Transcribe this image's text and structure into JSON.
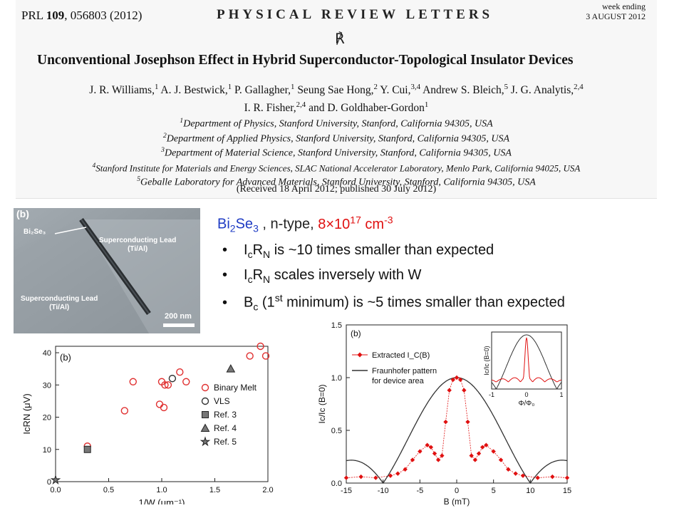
{
  "paper": {
    "citation_prefix": "PRL ",
    "volume": "109",
    "citation_suffix": ", 056803 (2012)",
    "journal": "PHYSICAL REVIEW LETTERS",
    "week_ending": "week ending",
    "date": "3 AUGUST 2012",
    "title": "Unconventional Josephson Effect in Hybrid Superconductor-Topological Insulator Devices",
    "authors": [
      {
        "name": "J. R. Williams,",
        "aff": "1"
      },
      {
        "name": "A. J. Bestwick,",
        "aff": "1"
      },
      {
        "name": "P. Gallagher,",
        "aff": "1"
      },
      {
        "name": "Seung Sae Hong,",
        "aff": "2"
      },
      {
        "name": "Y. Cui,",
        "aff": "3,4"
      },
      {
        "name": "Andrew S. Bleich,",
        "aff": "5"
      },
      {
        "name": "J. G. Analytis,",
        "aff": "2,4"
      },
      {
        "name": "I. R. Fisher,",
        "aff": "2,4"
      },
      {
        "name": "and D. Goldhaber-Gordon",
        "aff": "1"
      }
    ],
    "affiliations": [
      {
        "num": "1",
        "text": "Department of Physics, Stanford University, Stanford, California 94305, USA"
      },
      {
        "num": "2",
        "text": "Department of Applied Physics, Stanford University, Stanford, California 94305, USA"
      },
      {
        "num": "3",
        "text": "Department of Material Science, Stanford University, Stanford, California 94305, USA"
      },
      {
        "num": "4",
        "text": "Stanford Institute for Materials and Energy Sciences, SLAC National Accelerator Laboratory, Menlo Park, California 94025, USA"
      },
      {
        "num": "5",
        "text": "Geballe Laboratory for Advanced Materials, Stanford University, Stanford, California 94305, USA"
      }
    ],
    "received": "(Received 18 April 2012; published 30 July 2012)"
  },
  "sem_image": {
    "panel_label": "(b)",
    "material_label": "Bi₂Se₃",
    "lead_top": "Superconducting Lead\n(Ti/Al)",
    "lead_bottom": "Superconducting Lead\n(Ti/Al)",
    "scale_bar": "200 nm"
  },
  "material": {
    "name_base": "Bi",
    "name_sub1": "2",
    "name_mid": "Se",
    "name_sub2": "3",
    "type_text": " , n-type, ",
    "density_base": "8",
    "density_times": "×10",
    "density_exp": "17",
    "density_unit": " cm",
    "density_unit_exp": "-3"
  },
  "bullets": [
    {
      "pre": "I",
      "sub1": "c",
      "mid": "R",
      "sub2": "N",
      "post": " is ~10 times smaller than expected"
    },
    {
      "pre": "I",
      "sub1": "c",
      "mid": "R",
      "sub2": "N",
      "post": " scales inversely with W"
    },
    {
      "pre": "B",
      "sub1": "c",
      "sup": "st",
      "post_a": " (1",
      "post_b": " minimum) is ~5 times smaller than expected"
    }
  ],
  "chart_data": [
    {
      "type": "scatter",
      "panel_label": "(b)",
      "xlabel": "1/W (μm⁻¹)",
      "ylabel": "IcRN (μV)",
      "xlim": [
        0.0,
        2.0
      ],
      "ylim": [
        0,
        42
      ],
      "xticks": [
        "0.0",
        "0.5",
        "1.0",
        "1.5",
        "2.0"
      ],
      "yticks": [
        "0",
        "10",
        "20",
        "30",
        "40"
      ],
      "grid": false,
      "legend_position": "right",
      "series": [
        {
          "name": "Binary Melt",
          "marker": "circle-open",
          "color": "#e03030",
          "points": [
            [
              0.3,
              11
            ],
            [
              0.65,
              22
            ],
            [
              0.73,
              31
            ],
            [
              0.98,
              24
            ],
            [
              1.0,
              31
            ],
            [
              1.02,
              23
            ],
            [
              1.03,
              30
            ],
            [
              1.06,
              30
            ],
            [
              1.17,
              34
            ],
            [
              1.23,
              31
            ],
            [
              1.83,
              39
            ],
            [
              1.93,
              42
            ],
            [
              1.98,
              39
            ]
          ]
        },
        {
          "name": "VLS",
          "marker": "circle-open",
          "color": "#333333",
          "points": [
            [
              1.1,
              32
            ]
          ]
        },
        {
          "name": "Ref. 3",
          "marker": "square",
          "color": "#555555",
          "points": [
            [
              0.3,
              10
            ]
          ]
        },
        {
          "name": "Ref. 4",
          "marker": "triangle",
          "color": "#555555",
          "points": [
            [
              1.65,
              35
            ]
          ]
        },
        {
          "name": "Ref. 5",
          "marker": "star",
          "color": "#555555",
          "points": [
            [
              0.0,
              0.5
            ]
          ]
        }
      ]
    },
    {
      "type": "line",
      "panel_label": "(b)",
      "xlabel": "B (mT)",
      "ylabel": "Ic/Ic (B=0)",
      "xlim": [
        -15,
        15
      ],
      "ylim": [
        0,
        1.5
      ],
      "xticks": [
        "-15",
        "-10",
        "-5",
        "0",
        "5",
        "10",
        "15"
      ],
      "yticks": [
        "0.0",
        "0.5",
        "1.0",
        "1.5"
      ],
      "grid": false,
      "legend_position": "top-left",
      "series": [
        {
          "name": "Extracted I_C(B)",
          "color": "#e01010",
          "x": [
            -15,
            -13,
            -11,
            -9,
            -8,
            -7,
            -6,
            -5,
            -4,
            -3.5,
            -3,
            -2.5,
            -2,
            -1.5,
            -1,
            -0.5,
            0,
            0.5,
            1,
            1.5,
            2,
            2.5,
            3,
            3.5,
            4,
            5,
            6,
            7,
            8,
            9,
            11,
            13,
            15
          ],
          "y": [
            0.05,
            0.06,
            0.05,
            0.07,
            0.09,
            0.13,
            0.22,
            0.3,
            0.36,
            0.34,
            0.28,
            0.22,
            0.26,
            0.58,
            0.88,
            0.98,
            1.0,
            0.98,
            0.88,
            0.58,
            0.26,
            0.22,
            0.28,
            0.34,
            0.36,
            0.3,
            0.22,
            0.13,
            0.09,
            0.07,
            0.05,
            0.06,
            0.05
          ]
        },
        {
          "name": "Fraunhofer pattern\nfor device area",
          "color": "#333333",
          "function": "abs(sin(pi*B/10)/(pi*B/10))"
        }
      ],
      "inset": {
        "xlabel": "Φ/Φ₀",
        "ylabel": "Ic/Ic (B=0)",
        "xticks": [
          "-1",
          "0",
          "1"
        ],
        "xlim": [
          -1,
          1
        ]
      }
    }
  ]
}
